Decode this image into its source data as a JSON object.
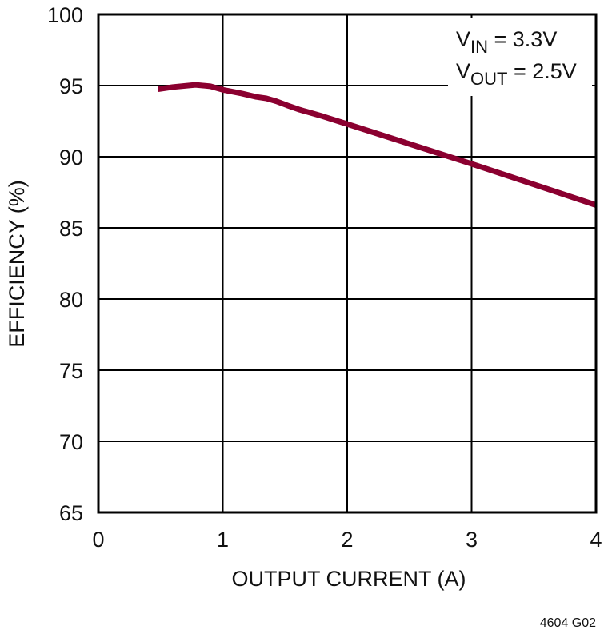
{
  "chart_data": {
    "type": "line",
    "title": "",
    "xlabel": "OUTPUT CURRENT (A)",
    "ylabel": "EFFICIENCY (%)",
    "xlim": [
      0,
      4
    ],
    "ylim": [
      65,
      100
    ],
    "x_ticks": [
      0,
      1,
      2,
      3,
      4
    ],
    "y_ticks": [
      65,
      70,
      75,
      80,
      85,
      90,
      95,
      100
    ],
    "grid": true,
    "legend_position": "none",
    "annotations": [
      {
        "main": "V",
        "sub": "IN",
        "rest": " = 3.3V"
      },
      {
        "main": "V",
        "sub": "OUT",
        "rest": " = 2.5V"
      }
    ],
    "series": [
      {
        "name": "Efficiency",
        "color": "#8B0030",
        "x": [
          0.48,
          0.6,
          0.78,
          0.9,
          1.0,
          1.15,
          1.27,
          1.35,
          1.43,
          1.52,
          1.62,
          1.8,
          2.0,
          2.5,
          3.0,
          3.5,
          4.0
        ],
        "y": [
          94.75,
          94.9,
          95.05,
          94.95,
          94.7,
          94.45,
          94.2,
          94.1,
          93.9,
          93.6,
          93.3,
          92.85,
          92.3,
          90.9,
          89.5,
          88.05,
          86.6
        ]
      }
    ]
  },
  "figure_code": "4604 G02"
}
